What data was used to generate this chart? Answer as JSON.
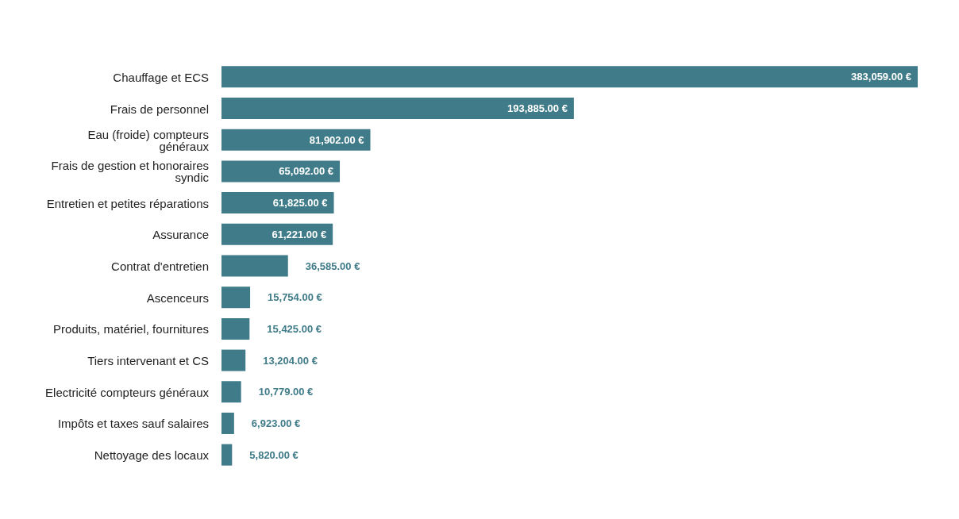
{
  "chart_data": {
    "type": "bar",
    "orientation": "horizontal",
    "categories": [
      "Chauffage et ECS",
      "Frais de personnel",
      "Eau (froide) compteurs généraux",
      "Frais de gestion et honoraires syndic",
      "Entretien et petites réparations",
      "Assurance",
      "Contrat d'entretien",
      "Ascenceurs",
      "Produits, matériel, fournitures",
      "Tiers intervenant et CS",
      "Electricité compteurs généraux",
      "Impôts et taxes sauf salaires",
      "Nettoyage des locaux"
    ],
    "values": [
      383059,
      193885,
      81902,
      65092,
      61825,
      61221,
      36585,
      15754,
      15425,
      13204,
      10779,
      6923,
      5820
    ],
    "value_labels": [
      "383,059.00 €",
      "193,885.00 €",
      "81,902.00 €",
      "65,092.00 €",
      "61,825.00 €",
      "61,221.00 €",
      "36,585.00 €",
      "15,754.00 €",
      "15,425.00 €",
      "13,204.00 €",
      "10,779.00 €",
      "6,923.00 €",
      "5,820.00 €"
    ],
    "color": "#3f7b88"
  }
}
